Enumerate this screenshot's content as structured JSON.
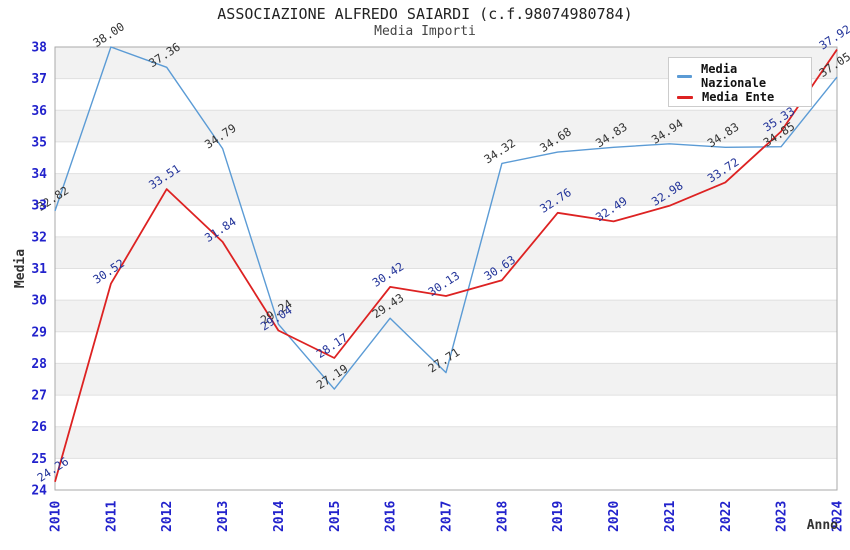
{
  "chart_data": {
    "type": "line",
    "title": "ASSOCIAZIONE ALFREDO SAIARDI (c.f.98074980784)",
    "subtitle": "Media Importi",
    "xlabel": "Anno",
    "ylabel": "Media",
    "ylim": [
      24,
      38
    ],
    "y_tick_step": 1,
    "categories": [
      "2010",
      "2011",
      "2012",
      "2013",
      "2014",
      "2015",
      "2016",
      "2017",
      "2018",
      "2019",
      "2020",
      "2021",
      "2022",
      "2023",
      "2024"
    ],
    "series": [
      {
        "name": "Media Nazionale",
        "color": "#5b9bd5",
        "label_color": "#333333",
        "line_width": 1.4,
        "values": [
          32.82,
          38.0,
          37.36,
          34.79,
          29.24,
          27.19,
          29.43,
          27.71,
          34.32,
          34.68,
          34.83,
          34.94,
          34.83,
          34.85,
          37.05
        ]
      },
      {
        "name": "Media Ente",
        "color": "#dd2222",
        "label_color": "#223399",
        "line_width": 1.8,
        "values": [
          24.26,
          30.52,
          33.51,
          31.84,
          29.04,
          28.17,
          30.42,
          30.13,
          30.63,
          32.76,
          32.49,
          32.98,
          33.72,
          35.33,
          37.92
        ]
      }
    ],
    "legend": {
      "position": "top-right"
    },
    "grid": {
      "bands": true,
      "band_color": "#f2f2f2",
      "line_color": "#e0e0e0",
      "border_color": "#aaaaaa"
    },
    "tick_color": "#2222cc",
    "axis_title_color": "#333333"
  }
}
